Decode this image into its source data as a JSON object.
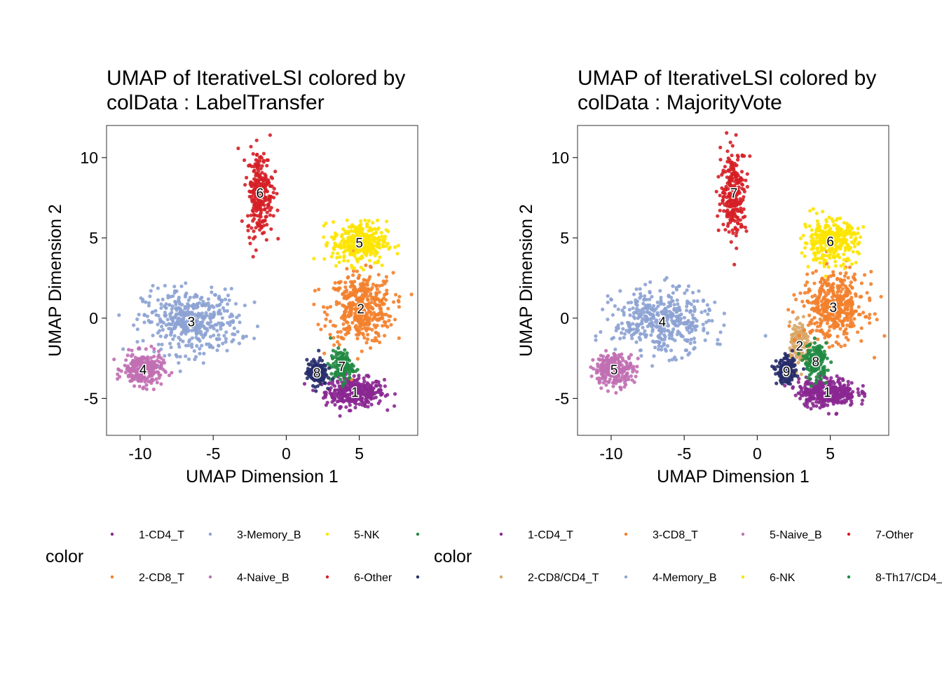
{
  "chart_data": [
    {
      "type": "scatter",
      "title_line1": "UMAP of IterativeLSI  colored by",
      "title_line2": "colData :  LabelTransfer",
      "xlabel": "UMAP Dimension 1",
      "ylabel": "UMAP Dimension 2",
      "xlim": [
        -12.3,
        9.0
      ],
      "ylim": [
        -7.3,
        12.0
      ],
      "xticks": [
        -10,
        -5,
        0,
        5
      ],
      "yticks": [
        -5,
        0,
        5,
        10
      ],
      "grid": false,
      "legend_title": "color",
      "legend_position": "bottom",
      "groups": [
        {
          "label": "1",
          "name": "1-CD4_T",
          "color": "#8A2791",
          "center": [
            4.7,
            -4.6
          ],
          "spread": [
            1.8,
            0.8
          ],
          "density": 1.4
        },
        {
          "label": "2",
          "name": "2-CD8_T",
          "color": "#F37F2B",
          "center": [
            5.1,
            0.6
          ],
          "spread": [
            2.0,
            2.0
          ],
          "density": 1.6
        },
        {
          "label": "3",
          "name": "3-Memory_B",
          "color": "#8CA2D3",
          "center": [
            -6.5,
            -0.2
          ],
          "spread": [
            3.0,
            1.8
          ],
          "density": 1.6
        },
        {
          "label": "4",
          "name": "4-Naive_B",
          "color": "#C16FB2",
          "center": [
            -9.8,
            -3.2
          ],
          "spread": [
            1.2,
            0.9
          ],
          "density": 1.0
        },
        {
          "label": "5",
          "name": "5-NK",
          "color": "#FDE400",
          "center": [
            5.0,
            4.7
          ],
          "spread": [
            1.7,
            1.2
          ],
          "density": 1.2
        },
        {
          "label": "6",
          "name": "6-Other",
          "color": "#D51F26",
          "center": [
            -1.8,
            7.8
          ],
          "spread": [
            0.8,
            2.4
          ],
          "density": 1.0
        },
        {
          "label": "7",
          "name": "",
          "color": "#208A42",
          "center": [
            3.8,
            -3.0
          ],
          "spread": [
            0.7,
            0.9
          ],
          "density": 0.5
        },
        {
          "label": "8",
          "name": "",
          "color": "#272E6A",
          "center": [
            2.1,
            -3.4
          ],
          "spread": [
            0.6,
            0.7
          ],
          "density": 0.7
        }
      ],
      "legend": [
        {
          "name": "1-CD4_T",
          "color": "#8A2791"
        },
        {
          "name": "2-CD8_T",
          "color": "#F37F2B"
        },
        {
          "name": "3-Memory_B",
          "color": "#8CA2D3"
        },
        {
          "name": "4-Naive_B",
          "color": "#C16FB2"
        },
        {
          "name": "5-NK",
          "color": "#FDE400"
        },
        {
          "name": "6-Other",
          "color": "#D51F26"
        },
        {
          "name": "",
          "color": "#208A42"
        },
        {
          "name": "",
          "color": "#272E6A"
        }
      ]
    },
    {
      "type": "scatter",
      "title_line1": "UMAP of IterativeLSI  colored by",
      "title_line2": "colData :  MajorityVote",
      "xlabel": "UMAP Dimension 1",
      "ylabel": "UMAP Dimension 2",
      "xlim": [
        -12.3,
        9.0
      ],
      "ylim": [
        -7.3,
        12.0
      ],
      "xticks": [
        -10,
        -5,
        0,
        5
      ],
      "yticks": [
        -5,
        0,
        5,
        10
      ],
      "grid": false,
      "legend_title": "color",
      "legend_position": "bottom",
      "groups": [
        {
          "label": "1",
          "name": "1-CD4_T",
          "color": "#8A2791",
          "center": [
            4.8,
            -4.6
          ],
          "spread": [
            1.8,
            0.8
          ],
          "density": 1.4
        },
        {
          "label": "2",
          "name": "2-CD8/CD4_T",
          "color": "#D8A767",
          "center": [
            2.9,
            -1.7
          ],
          "spread": [
            0.6,
            1.2
          ],
          "density": 0.6
        },
        {
          "label": "3",
          "name": "3-CD8_T",
          "color": "#F37F2B",
          "center": [
            5.2,
            0.7
          ],
          "spread": [
            2.0,
            1.9
          ],
          "density": 1.6
        },
        {
          "label": "4",
          "name": "4-Memory_B",
          "color": "#8CA2D3",
          "center": [
            -6.5,
            -0.2
          ],
          "spread": [
            3.0,
            1.8
          ],
          "density": 1.6
        },
        {
          "label": "5",
          "name": "5-Naive_B",
          "color": "#C16FB2",
          "center": [
            -9.8,
            -3.2
          ],
          "spread": [
            1.2,
            0.9
          ],
          "density": 1.0
        },
        {
          "label": "6",
          "name": "6-NK",
          "color": "#FDE400",
          "center": [
            5.0,
            4.8
          ],
          "spread": [
            1.7,
            1.2
          ],
          "density": 1.2
        },
        {
          "label": "7",
          "name": "7-Other",
          "color": "#D51F26",
          "center": [
            -1.6,
            7.8
          ],
          "spread": [
            0.8,
            2.4
          ],
          "density": 1.0
        },
        {
          "label": "8",
          "name": "8-Th17/CD4_",
          "color": "#208A42",
          "center": [
            4.0,
            -2.7
          ],
          "spread": [
            0.7,
            1.0
          ],
          "density": 0.6
        },
        {
          "label": "9",
          "name": "",
          "color": "#272E6A",
          "center": [
            2.0,
            -3.3
          ],
          "spread": [
            0.6,
            0.7
          ],
          "density": 0.7
        }
      ],
      "legend": [
        {
          "name": "1-CD4_T",
          "color": "#8A2791"
        },
        {
          "name": "2-CD8/CD4_T",
          "color": "#D8A767"
        },
        {
          "name": "3-CD8_T",
          "color": "#F37F2B"
        },
        {
          "name": "4-Memory_B",
          "color": "#8CA2D3"
        },
        {
          "name": "5-Naive_B",
          "color": "#C16FB2"
        },
        {
          "name": "6-NK",
          "color": "#FDE400"
        },
        {
          "name": "7-Other",
          "color": "#D51F26"
        },
        {
          "name": "8-Th17/CD4_",
          "color": "#208A42"
        }
      ]
    }
  ]
}
